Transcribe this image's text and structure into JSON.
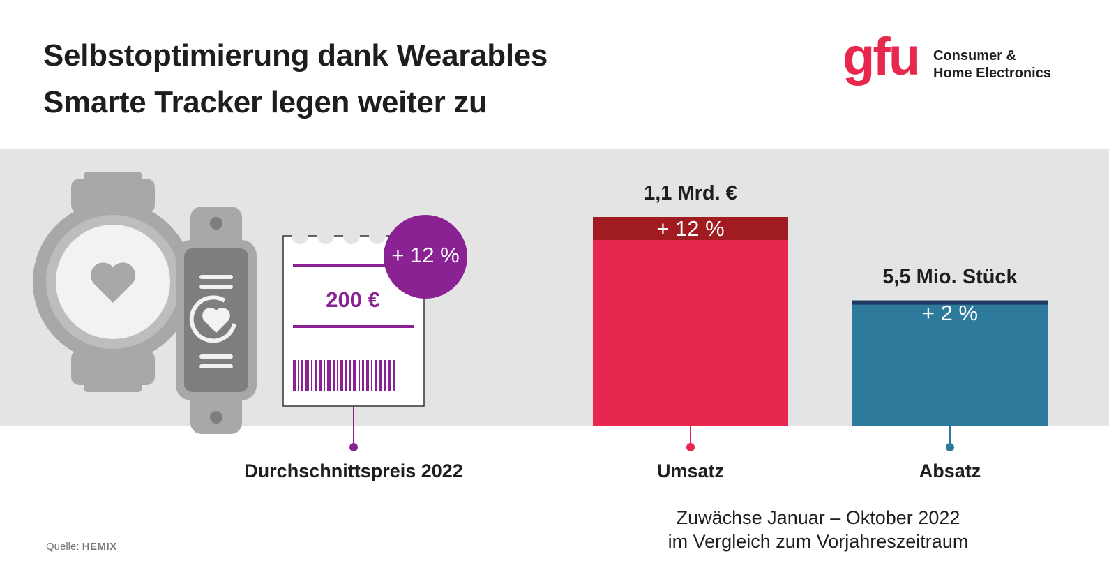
{
  "header": {
    "title_line1": "Selbstoptimierung dank Wearables",
    "title_line2": "Smarte Tracker legen weiter zu"
  },
  "logo": {
    "brand": "gfu",
    "sub_line1": "Consumer &",
    "sub_line2": "Home Electronics"
  },
  "price_card": {
    "value": "200 €",
    "growth": "+ 12 %",
    "label": "Durchschnittspreis 2022"
  },
  "chart_data": {
    "type": "bar",
    "categories": [
      "Umsatz",
      "Absatz"
    ],
    "series": [
      {
        "values": [
          1.1,
          5.5
        ],
        "units": [
          "Mrd. €",
          "Mio. Stück"
        ]
      }
    ],
    "relative_bar_heights": [
      1.0,
      0.6
    ],
    "growth_pct": [
      12,
      2
    ],
    "value_labels": [
      "1,1 Mrd. €",
      "5,5 Mio. Stück"
    ],
    "growth_labels": [
      "+ 12 %",
      "+ 2 %"
    ],
    "colors": {
      "Umsatz": "#e8274e",
      "Umsatz_growth": "#a01c20",
      "Absatz": "#2e7a9c",
      "Absatz_growth": "#1e3a63"
    },
    "footnote_line1": "Zuwächse Januar – Oktober 2022",
    "footnote_line2": "im Vergleich zum Vorjahreszeitraum"
  },
  "source": {
    "prefix": "Quelle:",
    "brand": "HEMIX"
  },
  "colors": {
    "price_accent": "#8a2294",
    "brand_red": "#e8274e",
    "band_gray": "#e3e4e3"
  },
  "icons": [
    "smartwatch-icon",
    "fitness-tracker-icon",
    "receipt-icon"
  ]
}
